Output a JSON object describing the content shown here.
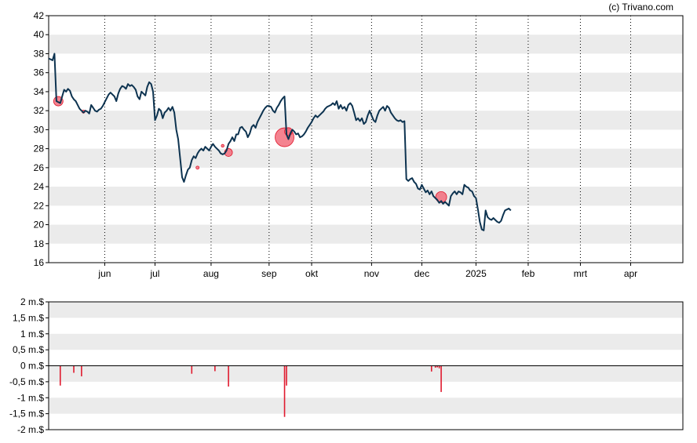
{
  "credit": "(c) Trivano.com",
  "colors": {
    "price_line": "#0d3350",
    "volume_bar": "#e01a2e",
    "marker_fill": "#f26d7d",
    "marker_stroke": "#e01a2e",
    "band": "#ebebeb",
    "grid_v": "#000000",
    "zero_line": "#000000"
  },
  "chart_data": [
    {
      "type": "line",
      "ylim": [
        16,
        42
      ],
      "y_ticks": [
        16,
        18,
        20,
        22,
        24,
        26,
        28,
        30,
        32,
        34,
        36,
        38,
        40,
        42
      ],
      "x_range_days": [
        0,
        328
      ],
      "x_ticks": [
        {
          "label": "jun",
          "day": 29
        },
        {
          "label": "jul",
          "day": 55
        },
        {
          "label": "aug",
          "day": 84
        },
        {
          "label": "sep",
          "day": 114
        },
        {
          "label": "okt",
          "day": 136
        },
        {
          "label": "nov",
          "day": 167
        },
        {
          "label": "dec",
          "day": 193
        },
        {
          "label": "2025",
          "day": 221
        },
        {
          "label": "feb",
          "day": 248
        },
        {
          "label": "mrt",
          "day": 275
        },
        {
          "label": "apr",
          "day": 301
        }
      ],
      "vertical_grid": "dotted at month ticks",
      "horizontal_bands": "alternating grey every 2 units",
      "series": [
        {
          "points": [
            [
              0,
              37.5
            ],
            [
              2,
              37.3
            ],
            [
              3,
              38.0
            ],
            [
              4,
              33.0
            ],
            [
              6,
              32.8
            ],
            [
              7,
              33.5
            ],
            [
              8,
              34.2
            ],
            [
              9,
              34.0
            ],
            [
              10,
              34.3
            ],
            [
              11,
              34.1
            ],
            [
              12,
              33.5
            ],
            [
              13,
              33.2
            ],
            [
              14,
              33.0
            ],
            [
              15,
              32.6
            ],
            [
              16,
              32.2
            ],
            [
              17,
              32.0
            ],
            [
              18,
              31.8
            ],
            [
              19,
              32.0
            ],
            [
              20,
              31.9
            ],
            [
              21,
              31.7
            ],
            [
              22,
              32.6
            ],
            [
              23,
              32.3
            ],
            [
              24,
              32.0
            ],
            [
              25,
              31.9
            ],
            [
              26,
              32.1
            ],
            [
              27,
              32.2
            ],
            [
              28,
              32.5
            ],
            [
              29,
              32.9
            ],
            [
              30,
              33.3
            ],
            [
              31,
              33.7
            ],
            [
              32,
              33.9
            ],
            [
              33,
              33.7
            ],
            [
              34,
              33.5
            ],
            [
              35,
              33.0
            ],
            [
              36,
              33.8
            ],
            [
              37,
              34.3
            ],
            [
              38,
              34.6
            ],
            [
              39,
              34.5
            ],
            [
              40,
              34.3
            ],
            [
              41,
              34.8
            ],
            [
              42,
              34.6
            ],
            [
              43,
              34.7
            ],
            [
              44,
              34.5
            ],
            [
              45,
              34.2
            ],
            [
              46,
              33.5
            ],
            [
              47,
              33.2
            ],
            [
              48,
              34.0
            ],
            [
              49,
              33.8
            ],
            [
              50,
              33.6
            ],
            [
              51,
              34.5
            ],
            [
              52,
              35.0
            ],
            [
              53,
              34.8
            ],
            [
              54,
              34.0
            ],
            [
              55,
              31.0
            ],
            [
              56,
              31.5
            ],
            [
              57,
              32.2
            ],
            [
              58,
              32.0
            ],
            [
              59,
              31.2
            ],
            [
              60,
              31.8
            ],
            [
              61,
              32.0
            ],
            [
              62,
              32.3
            ],
            [
              63,
              32.0
            ],
            [
              64,
              32.4
            ],
            [
              65,
              31.8
            ],
            [
              66,
              30.0
            ],
            [
              67,
              29.0
            ],
            [
              68,
              27.0
            ],
            [
              69,
              25.0
            ],
            [
              70,
              24.5
            ],
            [
              71,
              25.2
            ],
            [
              72,
              25.8
            ],
            [
              73,
              26.0
            ],
            [
              74,
              26.8
            ],
            [
              75,
              27.2
            ],
            [
              76,
              27.0
            ],
            [
              77,
              27.5
            ],
            [
              78,
              27.8
            ],
            [
              79,
              28.0
            ],
            [
              80,
              27.8
            ],
            [
              81,
              28.2
            ],
            [
              82,
              28.0
            ],
            [
              83,
              27.8
            ],
            [
              84,
              28.2
            ],
            [
              85,
              28.5
            ],
            [
              86,
              28.2
            ],
            [
              87,
              28.0
            ],
            [
              88,
              27.8
            ],
            [
              89,
              27.5
            ],
            [
              90,
              27.4
            ],
            [
              91,
              27.5
            ],
            [
              92,
              27.8
            ],
            [
              93,
              28.5
            ],
            [
              94,
              28.8
            ],
            [
              95,
              29.2
            ],
            [
              96,
              28.8
            ],
            [
              97,
              29.5
            ],
            [
              98,
              29.5
            ],
            [
              99,
              30.2
            ],
            [
              100,
              30.3
            ],
            [
              101,
              30.0
            ],
            [
              102,
              29.8
            ],
            [
              103,
              29.2
            ],
            [
              104,
              29.6
            ],
            [
              105,
              30.3
            ],
            [
              106,
              30.5
            ],
            [
              107,
              30.2
            ],
            [
              108,
              30.8
            ],
            [
              109,
              31.2
            ],
            [
              110,
              31.6
            ],
            [
              111,
              32.0
            ],
            [
              112,
              32.3
            ],
            [
              113,
              32.5
            ],
            [
              114,
              32.5
            ],
            [
              115,
              32.4
            ],
            [
              116,
              32.0
            ],
            [
              117,
              31.8
            ],
            [
              118,
              32.3
            ],
            [
              119,
              32.6
            ],
            [
              120,
              33.0
            ],
            [
              121,
              33.3
            ],
            [
              122,
              33.5
            ],
            [
              123,
              29.5
            ],
            [
              124,
              29.0
            ],
            [
              125,
              29.6
            ],
            [
              126,
              30.0
            ],
            [
              127,
              29.8
            ],
            [
              128,
              29.5
            ],
            [
              129,
              29.6
            ],
            [
              130,
              29.2
            ],
            [
              131,
              29.3
            ],
            [
              132,
              29.5
            ],
            [
              133,
              29.8
            ],
            [
              134,
              30.2
            ],
            [
              135,
              30.5
            ],
            [
              136,
              30.8
            ],
            [
              137,
              31.2
            ],
            [
              138,
              31.5
            ],
            [
              139,
              31.3
            ],
            [
              140,
              31.5
            ],
            [
              141,
              31.7
            ],
            [
              142,
              31.9
            ],
            [
              143,
              32.2
            ],
            [
              144,
              32.4
            ],
            [
              145,
              32.5
            ],
            [
              146,
              32.6
            ],
            [
              147,
              32.8
            ],
            [
              148,
              32.6
            ],
            [
              149,
              33.0
            ],
            [
              150,
              32.2
            ],
            [
              151,
              32.6
            ],
            [
              152,
              32.2
            ],
            [
              153,
              32.4
            ],
            [
              154,
              32.0
            ],
            [
              155,
              32.6
            ],
            [
              156,
              32.8
            ],
            [
              157,
              32.5
            ],
            [
              158,
              31.8
            ],
            [
              159,
              31.0
            ],
            [
              160,
              31.2
            ],
            [
              161,
              30.9
            ],
            [
              162,
              31.2
            ],
            [
              163,
              30.6
            ],
            [
              164,
              30.8
            ],
            [
              165,
              31.5
            ],
            [
              166,
              32.0
            ],
            [
              167,
              31.5
            ],
            [
              168,
              31.0
            ],
            [
              169,
              30.8
            ],
            [
              170,
              31.5
            ],
            [
              171,
              32.0
            ],
            [
              172,
              32.2
            ],
            [
              173,
              32.4
            ],
            [
              174,
              32.0
            ],
            [
              175,
              32.5
            ],
            [
              176,
              32.3
            ],
            [
              177,
              31.8
            ],
            [
              178,
              31.5
            ],
            [
              179,
              31.2
            ],
            [
              180,
              31.0
            ],
            [
              181,
              30.9
            ],
            [
              182,
              31.0
            ],
            [
              183,
              30.8
            ],
            [
              184,
              30.9
            ],
            [
              185,
              24.8
            ],
            [
              186,
              24.6
            ],
            [
              187,
              24.8
            ],
            [
              188,
              24.9
            ],
            [
              189,
              24.5
            ],
            [
              190,
              24.3
            ],
            [
              191,
              23.8
            ],
            [
              192,
              23.7
            ],
            [
              193,
              24.2
            ],
            [
              194,
              23.8
            ],
            [
              195,
              23.4
            ],
            [
              196,
              23.6
            ],
            [
              197,
              23.2
            ],
            [
              198,
              23.5
            ],
            [
              199,
              23.0
            ],
            [
              200,
              22.8
            ],
            [
              201,
              22.6
            ],
            [
              202,
              22.3
            ],
            [
              203,
              22.5
            ],
            [
              204,
              22.2
            ],
            [
              205,
              22.4
            ],
            [
              206,
              22.2
            ],
            [
              207,
              22.0
            ],
            [
              208,
              23.0
            ],
            [
              209,
              23.3
            ],
            [
              210,
              23.5
            ],
            [
              211,
              23.2
            ],
            [
              212,
              23.5
            ],
            [
              213,
              23.4
            ],
            [
              214,
              23.2
            ],
            [
              215,
              24.2
            ],
            [
              216,
              24.0
            ],
            [
              217,
              23.9
            ],
            [
              218,
              23.6
            ],
            [
              219,
              23.5
            ],
            [
              220,
              23.0
            ],
            [
              221,
              22.8
            ],
            [
              222,
              21.6
            ],
            [
              223,
              20.3
            ],
            [
              224,
              19.5
            ],
            [
              225,
              19.4
            ],
            [
              226,
              21.5
            ],
            [
              227,
              20.8
            ],
            [
              228,
              20.6
            ],
            [
              229,
              20.5
            ],
            [
              230,
              20.7
            ],
            [
              231,
              20.5
            ],
            [
              232,
              20.3
            ],
            [
              233,
              20.2
            ],
            [
              234,
              20.4
            ],
            [
              235,
              21.0
            ],
            [
              236,
              21.5
            ],
            [
              237,
              21.6
            ],
            [
              238,
              21.7
            ],
            [
              239,
              21.5
            ]
          ]
        }
      ],
      "markers": [
        {
          "day": 5,
          "value": 33.0,
          "size": 6
        },
        {
          "day": 18,
          "value": 31.9,
          "size": 2
        },
        {
          "day": 77,
          "value": 26.0,
          "size": 2
        },
        {
          "day": 90,
          "value": 28.3,
          "size": 1
        },
        {
          "day": 93,
          "value": 27.6,
          "size": 5
        },
        {
          "day": 122,
          "value": 29.2,
          "size": 12
        },
        {
          "day": 124,
          "value": 29.8,
          "size": 5
        },
        {
          "day": 203,
          "value": 22.9,
          "size": 7
        }
      ]
    },
    {
      "type": "bar",
      "ylim": [
        -2,
        2
      ],
      "y_ticks": [
        {
          "value": 2,
          "label": "2 m.$"
        },
        {
          "value": 1.5,
          "label": "1,5 m.$"
        },
        {
          "value": 1,
          "label": "1 m.$"
        },
        {
          "value": 0.5,
          "label": "0,5 m.$"
        },
        {
          "value": 0,
          "label": "0 m.$"
        },
        {
          "value": -0.5,
          "label": "-0,5 m.$"
        },
        {
          "value": -1,
          "label": "-1 m.$"
        },
        {
          "value": -1.5,
          "label": "-1,5 m.$"
        },
        {
          "value": -2,
          "label": "-2 m.$"
        }
      ],
      "horizontal_bands": "alternating grey every 0.5 units",
      "bars": [
        {
          "day": 6,
          "value": -0.62
        },
        {
          "day": 13,
          "value": -0.22
        },
        {
          "day": 17,
          "value": -0.33
        },
        {
          "day": 74,
          "value": -0.25
        },
        {
          "day": 86,
          "value": -0.17
        },
        {
          "day": 93,
          "value": -0.65
        },
        {
          "day": 122,
          "value": -1.6
        },
        {
          "day": 123,
          "value": -0.62
        },
        {
          "day": 198,
          "value": -0.18
        },
        {
          "day": 200,
          "value": -0.06
        },
        {
          "day": 201,
          "value": -0.05
        },
        {
          "day": 202,
          "value": -0.08
        },
        {
          "day": 203,
          "value": -0.82
        }
      ]
    }
  ]
}
